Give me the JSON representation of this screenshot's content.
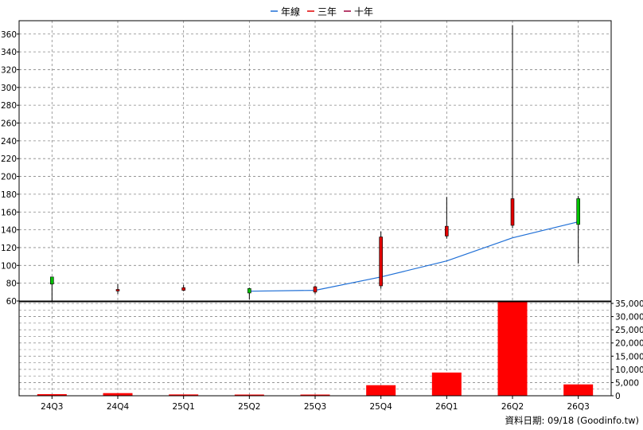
{
  "legend": [
    {
      "label": "年線",
      "color": "#1f6fd6"
    },
    {
      "label": "三年",
      "color": "#e00000"
    },
    {
      "label": "十年",
      "color": "#a0003c"
    }
  ],
  "footer_note": "資料日期: 09/18  (Goodinfo.tw)",
  "colors": {
    "up": "#00c000",
    "down": "#e00000",
    "volume": "#ff0000",
    "ma_line": "#1f6fd6",
    "grid": "#888888",
    "axis": "#000000"
  },
  "chart_data": [
    {
      "type": "candlestick",
      "categories": [
        "24Q3",
        "24Q4",
        "25Q1",
        "25Q2",
        "25Q3",
        "25Q4",
        "26Q1",
        "26Q2",
        "26Q3"
      ],
      "ylim": [
        60,
        375
      ],
      "yticks": [
        60,
        80,
        100,
        120,
        140,
        160,
        180,
        200,
        220,
        240,
        260,
        280,
        300,
        320,
        340,
        360
      ],
      "grid": true,
      "candles": [
        {
          "open": 79,
          "high": 86,
          "low": 60,
          "close": 87
        },
        {
          "open": 73,
          "high": 79,
          "low": 68,
          "close": 72
        },
        {
          "open": 75,
          "high": 78,
          "low": 71,
          "close": 72
        },
        {
          "open": 69,
          "high": 75,
          "low": 62,
          "close": 74
        },
        {
          "open": 76,
          "high": 77,
          "low": 68,
          "close": 70
        },
        {
          "open": 132,
          "high": 138,
          "low": 74,
          "close": 77
        },
        {
          "open": 144,
          "high": 177,
          "low": 130,
          "close": 133
        },
        {
          "open": 175,
          "high": 370,
          "low": 142,
          "close": 145
        },
        {
          "open": 146,
          "high": 178,
          "low": 102,
          "close": 175
        }
      ],
      "series": [
        {
          "name": "年線",
          "values": [
            null,
            null,
            null,
            71,
            72,
            87,
            105,
            131,
            149
          ]
        }
      ]
    },
    {
      "type": "bar",
      "categories": [
        "24Q3",
        "24Q4",
        "25Q1",
        "25Q2",
        "25Q3",
        "25Q4",
        "26Q1",
        "26Q2",
        "26Q3"
      ],
      "values": [
        600,
        1000,
        500,
        300,
        300,
        4000,
        8800,
        35500,
        4300
      ],
      "ylim": [
        0,
        35000
      ],
      "yticks": [
        0,
        5000,
        10000,
        15000,
        20000,
        25000,
        30000,
        35000
      ],
      "ytick_labels": [
        "0",
        "5,000",
        "10,000",
        "15,000",
        "20,000",
        "25,000",
        "30,000",
        "35,000"
      ],
      "grid": true
    }
  ]
}
